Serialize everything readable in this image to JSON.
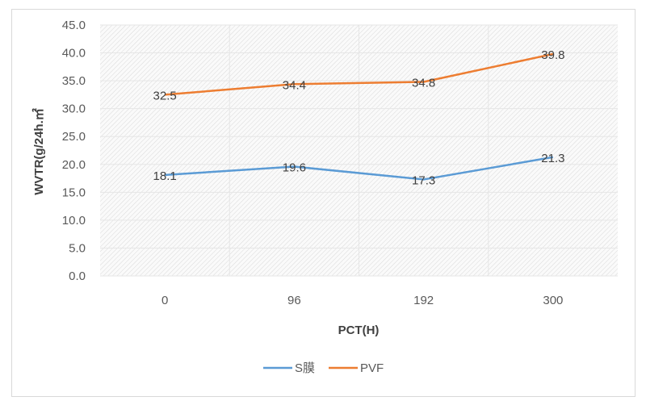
{
  "chart_data": {
    "type": "line",
    "title": "",
    "xlabel": "PCT(H)",
    "ylabel": "WVTR(g/24h.㎡",
    "categories": [
      "0",
      "96",
      "192",
      "300"
    ],
    "series": [
      {
        "name": "S膜",
        "values": [
          18.1,
          19.6,
          17.3,
          21.3
        ],
        "color": "#5b9bd5"
      },
      {
        "name": "PVF",
        "values": [
          32.5,
          34.4,
          34.8,
          39.8
        ],
        "color": "#ed7d31"
      }
    ],
    "ylim": [
      0,
      45
    ],
    "yticks": [
      "0.0",
      "5.0",
      "10.0",
      "15.0",
      "20.0",
      "25.0",
      "30.0",
      "35.0",
      "40.0",
      "45.0"
    ],
    "grid": true,
    "legend": "bottom"
  }
}
